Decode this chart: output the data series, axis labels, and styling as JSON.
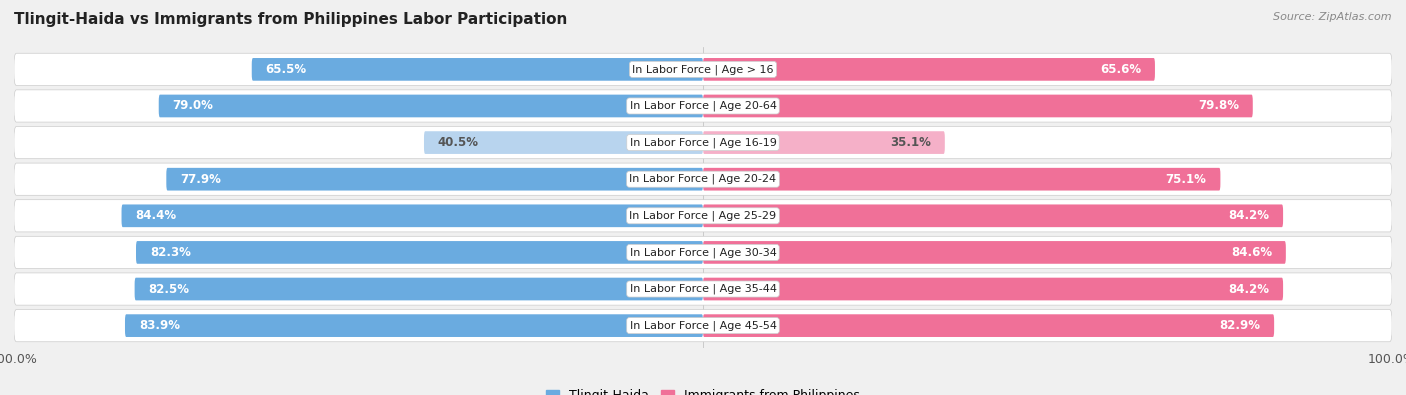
{
  "title": "Tlingit-Haida vs Immigrants from Philippines Labor Participation",
  "source": "Source: ZipAtlas.com",
  "categories": [
    "In Labor Force | Age > 16",
    "In Labor Force | Age 20-64",
    "In Labor Force | Age 16-19",
    "In Labor Force | Age 20-24",
    "In Labor Force | Age 25-29",
    "In Labor Force | Age 30-34",
    "In Labor Force | Age 35-44",
    "In Labor Force | Age 45-54"
  ],
  "tlingit_values": [
    65.5,
    79.0,
    40.5,
    77.9,
    84.4,
    82.3,
    82.5,
    83.9
  ],
  "philippines_values": [
    65.6,
    79.8,
    35.1,
    75.1,
    84.2,
    84.6,
    84.2,
    82.9
  ],
  "tlingit_color": "#6aabe0",
  "tlingit_color_light": "#b8d4ee",
  "philippines_color": "#f07098",
  "philippines_color_light": "#f5b0c8",
  "bar_height": 0.62,
  "max_value": 100.0,
  "bg_color": "#f0f0f0",
  "row_bg_even": "#f7f7f7",
  "row_bg_odd": "#ebebeb",
  "label_fontsize": 8.5,
  "cat_fontsize": 8.0
}
